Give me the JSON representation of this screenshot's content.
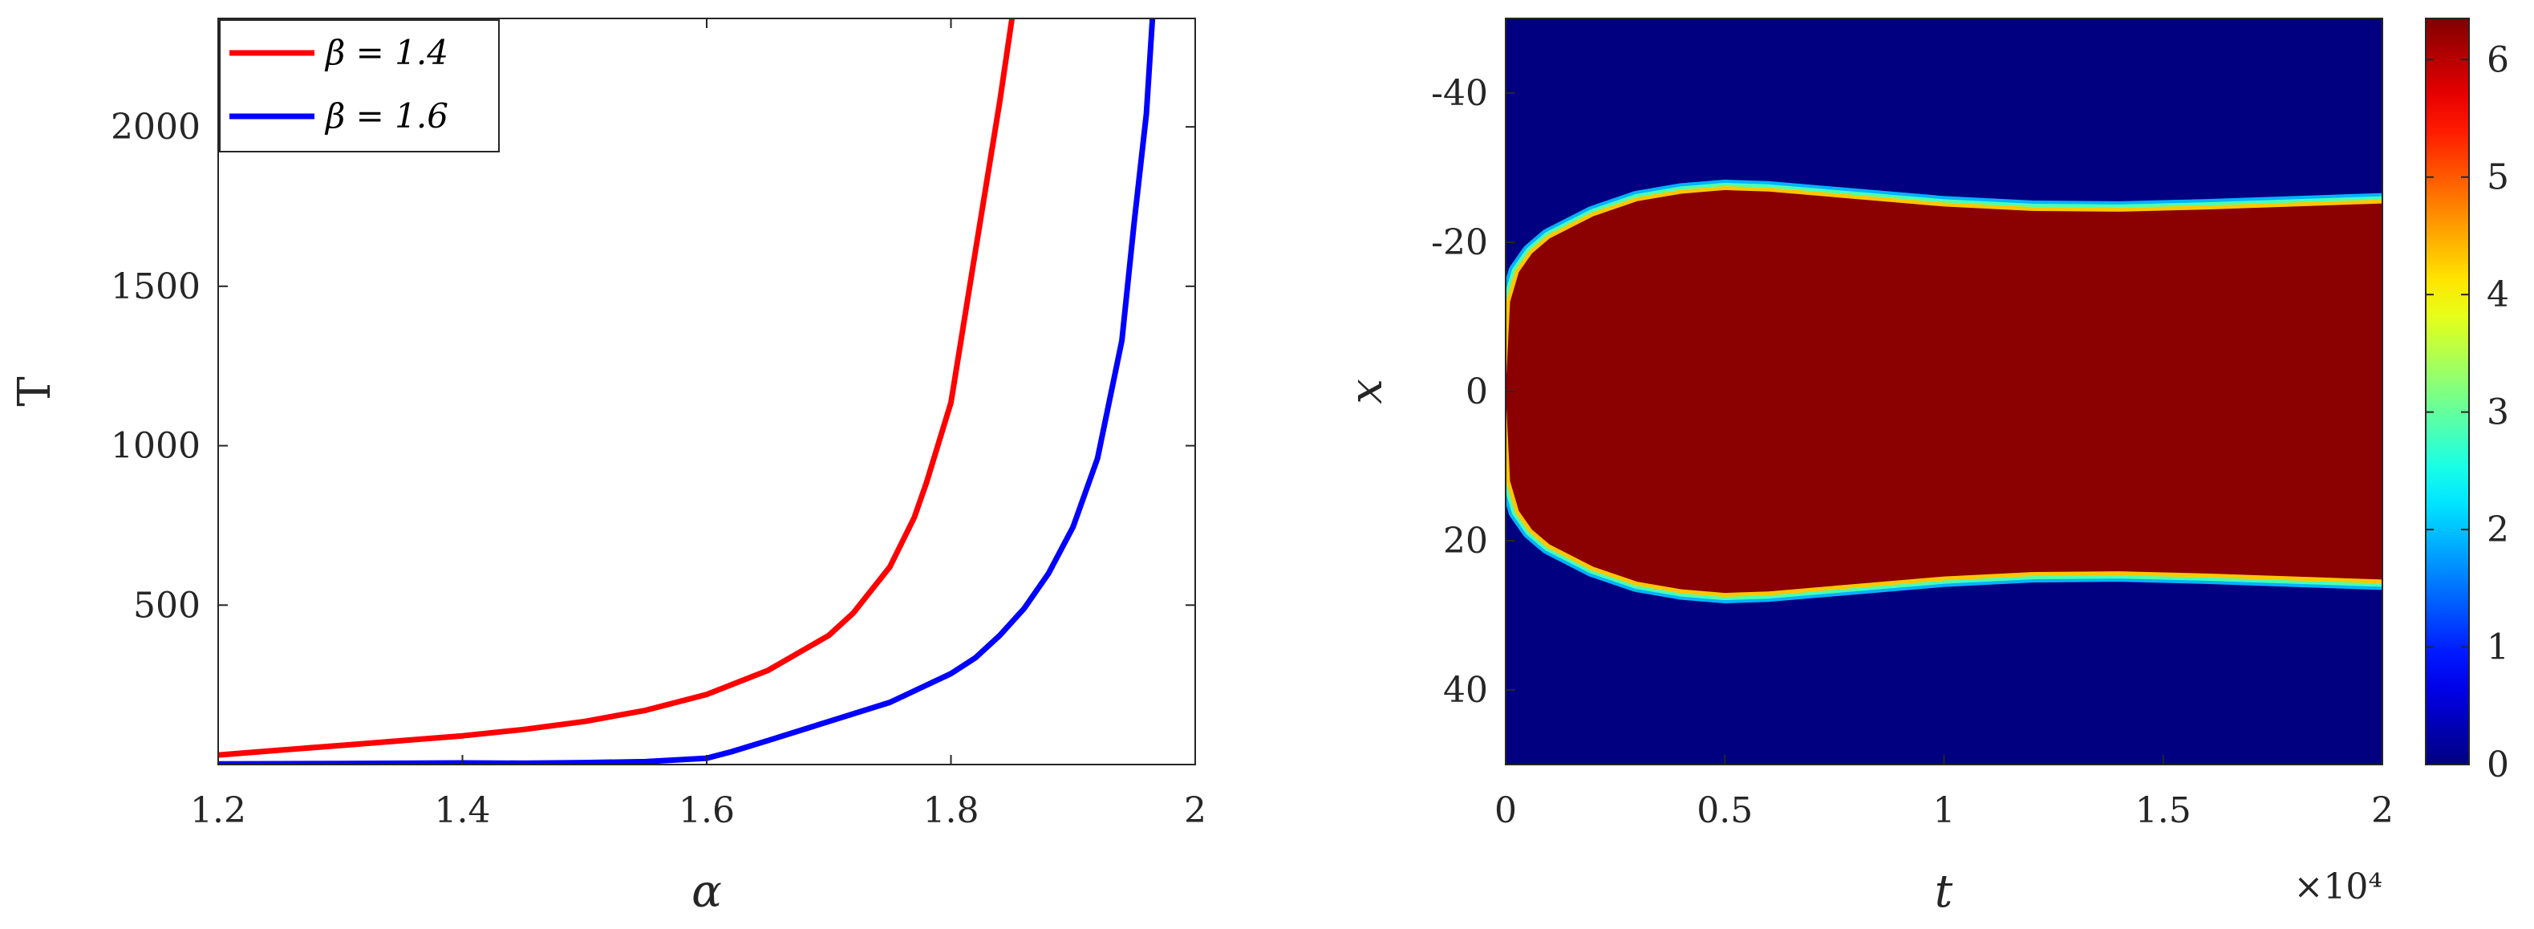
{
  "chart_data": [
    {
      "type": "line",
      "xlabel": "α",
      "ylabel": "T",
      "xlim": [
        1.2,
        2.0
      ],
      "ylim": [
        0,
        2340
      ],
      "xticks": [
        1.2,
        1.4,
        1.6,
        1.8,
        2.0
      ],
      "xtick_labels": [
        "1.2",
        "1.4",
        "1.6",
        "1.8",
        "2"
      ],
      "yticks": [
        500,
        1000,
        1500,
        2000
      ],
      "ytick_labels": [
        "500",
        "1000",
        "1500",
        "2000"
      ],
      "grid": false,
      "legend": "top-left",
      "series": [
        {
          "name": "β = 1.4",
          "color": "#ff0000",
          "x": [
            1.2,
            1.25,
            1.3,
            1.35,
            1.4,
            1.45,
            1.5,
            1.55,
            1.6,
            1.65,
            1.7,
            1.72,
            1.75,
            1.77,
            1.78,
            1.8,
            1.82,
            1.84,
            1.85
          ],
          "y": [
            30,
            45,
            60,
            75,
            90,
            110,
            135,
            170,
            220,
            295,
            405,
            475,
            620,
            775,
            885,
            1135,
            1610,
            2080,
            2340
          ]
        },
        {
          "name": "β = 1.6",
          "color": "#0000ff",
          "x": [
            1.2,
            1.3,
            1.4,
            1.45,
            1.5,
            1.55,
            1.6,
            1.62,
            1.65,
            1.7,
            1.75,
            1.8,
            1.82,
            1.84,
            1.86,
            1.88,
            1.9,
            1.92,
            1.94,
            1.95,
            1.96,
            1.965
          ],
          "y": [
            2,
            3,
            5,
            4,
            6,
            9,
            20,
            40,
            75,
            135,
            195,
            285,
            335,
            405,
            490,
            600,
            745,
            960,
            1330,
            1700,
            2040,
            2340
          ]
        }
      ]
    },
    {
      "type": "heatmap",
      "xlabel": "t",
      "ylabel": "x",
      "x_exponent_label": "×10⁴",
      "xlim": [
        0,
        20000
      ],
      "ylim": [
        -50,
        50
      ],
      "xticks": [
        0,
        5000,
        10000,
        15000,
        20000
      ],
      "xtick_labels": [
        "0",
        "0.5",
        "1",
        "1.5",
        "2"
      ],
      "yticks": [
        -40,
        -20,
        0,
        20,
        40
      ],
      "ytick_labels": [
        "-40",
        "-20",
        "0",
        "20",
        "40"
      ],
      "y_direction": "reversed",
      "colormap": "jet",
      "clim": [
        0,
        6.35
      ],
      "colorbar_ticks": [
        0,
        1,
        2,
        3,
        4,
        5,
        6
      ],
      "colorbar_tick_labels": [
        "0",
        "1",
        "2",
        "3",
        "4",
        "5",
        "6"
      ],
      "high_value": 6.28,
      "low_value": 0,
      "boundary": {
        "t": [
          0,
          100,
          300,
          600,
          1000,
          2000,
          3000,
          4000,
          5000,
          6000,
          8000,
          10000,
          12000,
          14000,
          16000,
          18000,
          20000
        ],
        "half_width": [
          0,
          12,
          16,
          18.5,
          20.5,
          23.5,
          25.5,
          26.5,
          27,
          26.8,
          25.8,
          24.8,
          24.2,
          24.1,
          24.4,
          24.8,
          25.2
        ]
      }
    }
  ]
}
